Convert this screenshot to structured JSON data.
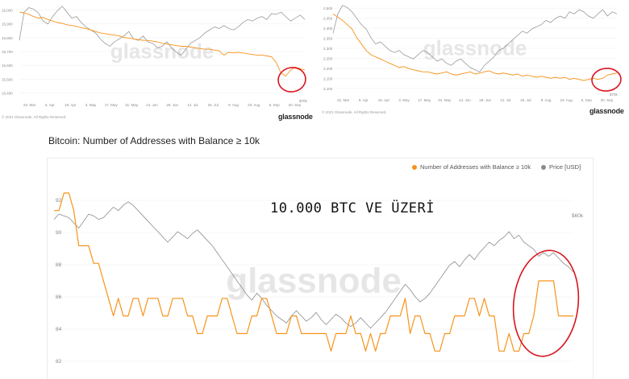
{
  "colors": {
    "addresses": "#f7931a",
    "price": "#8c8c8c",
    "circle": "#d9141f",
    "grid": "#f0f0f0"
  },
  "copyright": "© 2021 Glassnode. All Rights Reserved.",
  "logo": "glassnode",
  "watermark": "glassnode",
  "chart_data": [
    {
      "type": "line",
      "panel": "top-left",
      "x_ticks": [
        "22. Mar",
        "5. Apr",
        "19. Apr",
        "3. May",
        "17. May",
        "31. May",
        "14. Jun",
        "28. Jun",
        "12. Jul",
        "26. Jul",
        "9. Aug",
        "23. Aug",
        "6. Sep",
        "20. Sep"
      ],
      "y_ticks": [
        "16,000",
        "15,900",
        "15,800",
        "15,700",
        "15,600",
        "15,500",
        "15,400"
      ],
      "price_tick": "$70k",
      "ylim": [
        15400,
        16050
      ],
      "series": [
        {
          "role": "addresses",
          "values": [
            15990,
            15985,
            15975,
            15960,
            15950,
            15955,
            15940,
            15930,
            15920,
            15915,
            15905,
            15900,
            15895,
            15885,
            15880,
            15870,
            15860,
            15850,
            15845,
            15840,
            15835,
            15830,
            15820,
            15815,
            15810,
            15805,
            15800,
            15800,
            15795,
            15790,
            15780,
            15775,
            15770,
            15765,
            15760,
            15760,
            15755,
            15750,
            15745,
            15740,
            15740,
            15735,
            15730,
            15700,
            15720,
            15715,
            15720,
            15715,
            15710,
            15705,
            15700,
            15700,
            15695,
            15690,
            15650,
            15580,
            15560,
            15600,
            15620,
            15610,
            15600
          ]
        },
        {
          "role": "price",
          "values": [
            15800,
            15990,
            16020,
            16010,
            15985,
            15930,
            15910,
            15960,
            16000,
            16030,
            15990,
            15950,
            15960,
            15920,
            15890,
            15870,
            15850,
            15810,
            15780,
            15760,
            15790,
            15810,
            15830,
            15860,
            15810,
            15800,
            15830,
            15790,
            15780,
            15750,
            15760,
            15790,
            15750,
            15720,
            15700,
            15740,
            15780,
            15800,
            15820,
            15850,
            15870,
            15890,
            15880,
            15900,
            15880,
            15870,
            15890,
            15920,
            15940,
            15930,
            15950,
            15960,
            15940,
            15980,
            15975,
            15990,
            15960,
            15930,
            15950,
            15970,
            15940
          ]
        }
      ]
    },
    {
      "type": "line",
      "panel": "top-right",
      "x_ticks": [
        "22. Mar",
        "5. Apr",
        "19. Apr",
        "3. May",
        "17. May",
        "31. May",
        "14. Jun",
        "28. Jun",
        "12. Jul",
        "26. Jul",
        "9. Aug",
        "23. Aug",
        "6. Sep",
        "20. Sep"
      ],
      "y_ticks": [
        "2,500",
        "2,450",
        "2,400",
        "2,350",
        "2,300",
        "2,250",
        "2,200",
        "2,150",
        "2,100"
      ],
      "price_tick": "$70k",
      "ylim": [
        2100,
        2520
      ],
      "series": [
        {
          "role": "addresses",
          "values": [
            2470,
            2455,
            2440,
            2420,
            2400,
            2360,
            2330,
            2300,
            2280,
            2270,
            2260,
            2250,
            2240,
            2230,
            2220,
            2225,
            2215,
            2210,
            2205,
            2200,
            2200,
            2195,
            2190,
            2195,
            2200,
            2190,
            2185,
            2190,
            2195,
            2200,
            2190,
            2195,
            2200,
            2205,
            2195,
            2190,
            2195,
            2190,
            2185,
            2190,
            2180,
            2185,
            2180,
            2175,
            2180,
            2175,
            2170,
            2175,
            2170,
            2175,
            2165,
            2170,
            2165,
            2160,
            2165,
            2170,
            2165,
            2170,
            2185,
            2190,
            2195
          ]
        },
        {
          "role": "price",
          "values": [
            2380,
            2470,
            2510,
            2500,
            2480,
            2450,
            2420,
            2400,
            2360,
            2330,
            2340,
            2320,
            2300,
            2290,
            2300,
            2280,
            2270,
            2260,
            2280,
            2300,
            2290,
            2270,
            2250,
            2260,
            2240,
            2230,
            2250,
            2260,
            2240,
            2220,
            2210,
            2200,
            2230,
            2250,
            2270,
            2300,
            2310,
            2330,
            2350,
            2370,
            2390,
            2380,
            2400,
            2410,
            2420,
            2440,
            2430,
            2450,
            2460,
            2450,
            2480,
            2470,
            2490,
            2480,
            2460,
            2450,
            2470,
            2490,
            2460,
            2480,
            2470
          ]
        }
      ]
    },
    {
      "type": "line",
      "panel": "main",
      "title": "Bitcoin: Number of Addresses with Balance ≥ 10k",
      "legend": [
        "Number of Addresses with Balance ≥ 10k",
        "Price [USD]"
      ],
      "legend_position": "top-right",
      "annotation": "10.000 BTC VE ÜZERİ",
      "y_ticks": [
        "92",
        "90",
        "88",
        "86",
        "84",
        "82"
      ],
      "price_tick": "$60k",
      "ylim": [
        81.5,
        92.5
      ],
      "series": [
        {
          "role": "addresses",
          "values": [
            91,
            91,
            92,
            92,
            91,
            89,
            89,
            89,
            88,
            88,
            87,
            86,
            85,
            86,
            85,
            85,
            86,
            86,
            85,
            86,
            86,
            86,
            85,
            85,
            86,
            86,
            86,
            85,
            85,
            84,
            84,
            85,
            85,
            85,
            86,
            86,
            85,
            84,
            84,
            84,
            85,
            85,
            86,
            86,
            85,
            84,
            84,
            84,
            85,
            85,
            84,
            84,
            84,
            84,
            84,
            84,
            83,
            84,
            84,
            84,
            85,
            84,
            84,
            83,
            84,
            83,
            84,
            84,
            85,
            85,
            85,
            86,
            84,
            85,
            85,
            84,
            84,
            83,
            83,
            84,
            84,
            85,
            85,
            85,
            86,
            86,
            85,
            86,
            85,
            85,
            83,
            83,
            84,
            83,
            83,
            84,
            84,
            85,
            87,
            87,
            87,
            87,
            85,
            85,
            85,
            85
          ]
        },
        {
          "role": "price",
          "values": [
            90.5,
            90.8,
            90.7,
            90.6,
            90.3,
            90.0,
            90.4,
            90.8,
            90.7,
            90.5,
            90.6,
            90.9,
            91.2,
            91.0,
            91.3,
            91.5,
            91.3,
            91.0,
            90.7,
            90.4,
            90.1,
            89.8,
            89.5,
            89.2,
            89.5,
            89.8,
            89.6,
            89.4,
            89.7,
            89.9,
            89.6,
            89.3,
            89.0,
            88.6,
            88.2,
            87.8,
            87.4,
            87.0,
            86.6,
            86.2,
            85.9,
            86.3,
            86.0,
            85.6,
            85.3,
            85.0,
            84.8,
            84.6,
            85.0,
            85.3,
            85.0,
            84.7,
            84.9,
            85.2,
            84.8,
            84.5,
            84.8,
            85.1,
            84.9,
            84.6,
            84.4,
            84.6,
            84.9,
            84.6,
            84.3,
            84.6,
            84.9,
            85.2,
            85.6,
            86.0,
            86.4,
            86.8,
            86.5,
            86.1,
            85.8,
            86.0,
            86.3,
            86.7,
            87.1,
            87.5,
            87.9,
            88.1,
            87.8,
            88.2,
            88.5,
            88.2,
            88.6,
            88.9,
            89.2,
            89.0,
            89.3,
            89.5,
            89.8,
            89.4,
            89.6,
            89.2,
            89.0,
            88.8,
            88.4,
            88.6,
            88.4,
            88.6,
            88.3,
            88.0,
            87.8,
            87.5
          ]
        }
      ]
    }
  ]
}
